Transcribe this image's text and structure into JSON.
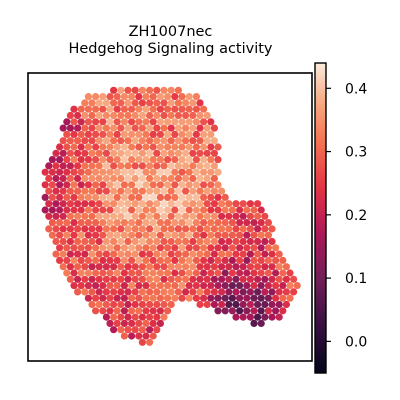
{
  "chart_data": {
    "type": "heatmap",
    "title_line1": "ZH1007nec",
    "title_line2": "Hedgehog Signaling activity",
    "xlabel": "",
    "ylabel": "",
    "grid": false,
    "colormap": "rocket",
    "colorbar": {
      "range": [
        -0.05,
        0.44
      ],
      "ticks": [
        {
          "value": 0.0,
          "label": "0.0"
        },
        {
          "value": 0.1,
          "label": "0.1"
        },
        {
          "value": 0.2,
          "label": "0.2"
        },
        {
          "value": 0.3,
          "label": "0.3"
        },
        {
          "value": 0.4,
          "label": "0.4"
        }
      ]
    },
    "regions": [
      {
        "area": "upper-left lobe",
        "value": 0.28
      },
      {
        "area": "upper-left bright patch",
        "value": 0.37
      },
      {
        "area": "far upper-left edge",
        "value": 0.05
      },
      {
        "area": "left column",
        "value": 0.17
      },
      {
        "area": "center-left core",
        "value": 0.4
      },
      {
        "area": "upper-center band",
        "value": 0.3
      },
      {
        "area": "center",
        "value": 0.38
      },
      {
        "area": "lower-center",
        "value": 0.27
      },
      {
        "area": "lower-left lobe",
        "value": 0.25
      },
      {
        "area": "right lobe",
        "value": 0.22
      },
      {
        "area": "right lobe dark core",
        "value": 0.02
      },
      {
        "area": "far right tip",
        "value": 0.32
      },
      {
        "area": "bottom tail",
        "value": 0.22
      }
    ]
  }
}
